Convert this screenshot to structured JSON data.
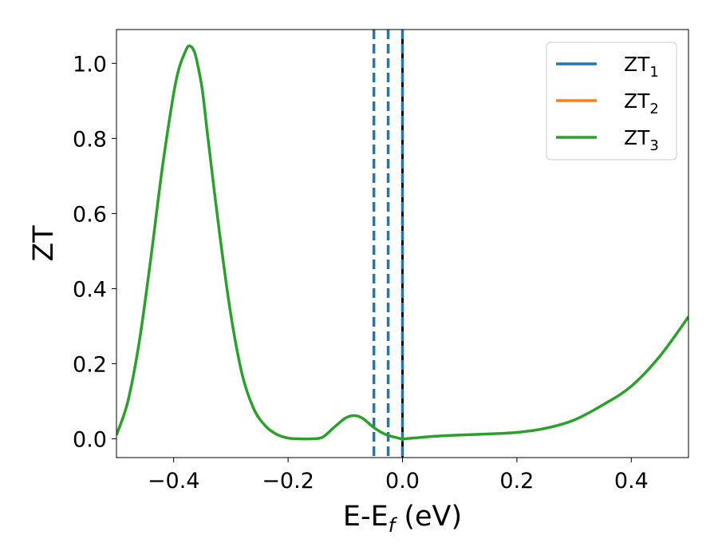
{
  "chart_data": {
    "type": "line",
    "xlabel": "E-E",
    "xlabel_sub": "f",
    "xlabel_unit": " (eV)",
    "ylabel": "ZT",
    "xlim": [
      -0.5,
      0.5
    ],
    "ylim": [
      -0.05,
      1.09
    ],
    "xticks": [
      -0.4,
      -0.2,
      0.0,
      0.2,
      0.4
    ],
    "xtick_labels": [
      "−0.4",
      "−0.2",
      "0.0",
      "0.2",
      "0.4"
    ],
    "yticks": [
      0.0,
      0.2,
      0.4,
      0.6,
      0.8,
      1.0
    ],
    "ytick_labels": [
      "0.0",
      "0.2",
      "0.4",
      "0.6",
      "0.8",
      "1.0"
    ],
    "legend": {
      "location": "upper right",
      "entries": [
        {
          "base": "ZT",
          "sub": "1",
          "color": "#1f77b4"
        },
        {
          "base": "ZT",
          "sub": "2",
          "color": "#ff7f0e"
        },
        {
          "base": "ZT",
          "sub": "3",
          "color": "#2ca02c"
        }
      ]
    },
    "vertical_lines": [
      {
        "x": -0.05,
        "style": "dashed",
        "color": "#1f77b4"
      },
      {
        "x": -0.025,
        "style": "dashed",
        "color": "#1f77b4"
      },
      {
        "x": 0.0,
        "style": "solid",
        "color": "#000000"
      },
      {
        "x": 0.0,
        "style": "dashed",
        "color": "#1f77b4"
      }
    ],
    "series": [
      {
        "name": "ZT3",
        "color": "#2ca02c",
        "x": [
          -0.5,
          -0.48,
          -0.46,
          -0.44,
          -0.42,
          -0.4,
          -0.39,
          -0.38,
          -0.375,
          -0.37,
          -0.365,
          -0.36,
          -0.35,
          -0.34,
          -0.32,
          -0.3,
          -0.28,
          -0.26,
          -0.24,
          -0.22,
          -0.2,
          -0.18,
          -0.16,
          -0.14,
          -0.12,
          -0.1,
          -0.085,
          -0.07,
          -0.05,
          -0.03,
          -0.01,
          0.0,
          0.02,
          0.05,
          0.1,
          0.15,
          0.2,
          0.25,
          0.3,
          0.35,
          0.4,
          0.45,
          0.5
        ],
        "y": [
          0.01,
          0.1,
          0.26,
          0.48,
          0.72,
          0.92,
          0.99,
          1.03,
          1.045,
          1.045,
          1.035,
          1.01,
          0.93,
          0.8,
          0.55,
          0.33,
          0.17,
          0.08,
          0.035,
          0.012,
          0.002,
          0.0,
          0.0,
          0.004,
          0.03,
          0.055,
          0.062,
          0.055,
          0.03,
          0.012,
          0.003,
          0.0,
          0.002,
          0.006,
          0.01,
          0.013,
          0.017,
          0.028,
          0.05,
          0.09,
          0.14,
          0.22,
          0.325
        ]
      }
    ]
  }
}
